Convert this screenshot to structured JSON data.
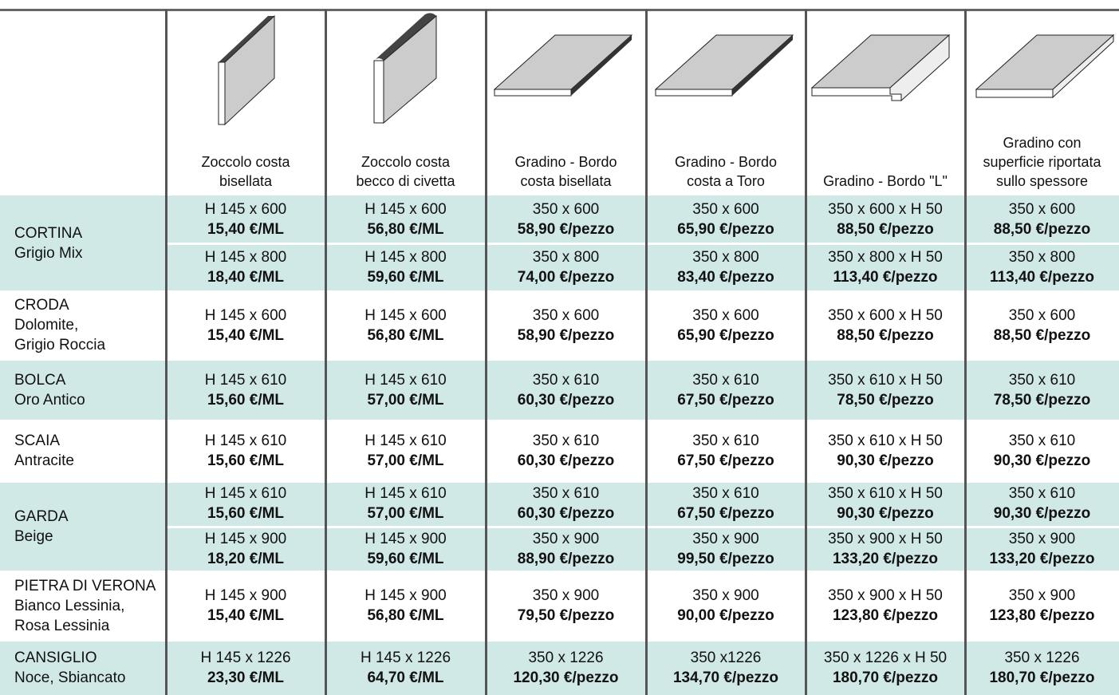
{
  "header": {
    "columns": [
      [
        "Zoccolo costa",
        "bisellata"
      ],
      [
        "Zoccolo  costa",
        "becco di civetta"
      ],
      [
        "Gradino - Bordo",
        "costa bisellata"
      ],
      [
        "Gradino - Bordo",
        "costa a Toro"
      ],
      [
        "Gradino - Bordo \"L\""
      ],
      [
        "Gradino con",
        "superficie riportata",
        "sullo spessore"
      ]
    ]
  },
  "table": {
    "groups": [
      {
        "name": [
          "CORTINA",
          "Grigio Mix"
        ],
        "rows": [
          [
            [
              "H 145 x 600",
              "15,40 €/ML"
            ],
            [
              "H 145 x 600",
              "56,80 €/ML"
            ],
            [
              "350 x 600",
              "58,90 €/pezzo"
            ],
            [
              "350 x 600",
              "65,90 €/pezzo"
            ],
            [
              "350 x 600 x H 50",
              "88,50 €/pezzo"
            ],
            [
              "350 x 600",
              "88,50 €/pezzo"
            ]
          ],
          [
            [
              "H 145 x 800",
              "18,40 €/ML"
            ],
            [
              "H 145 x 800",
              "59,60 €/ML"
            ],
            [
              "350 x 800",
              "74,00 €/pezzo"
            ],
            [
              "350 x 800",
              "83,40 €/pezzo"
            ],
            [
              "350 x 800 x H 50",
              "113,40 €/pezzo"
            ],
            [
              "350 x 800",
              "113,40 €/pezzo"
            ]
          ]
        ]
      },
      {
        "name": [
          "CRODA",
          "Dolomite,",
          "Grigio Roccia"
        ],
        "rows": [
          [
            [
              "H 145 x 600",
              "15,40 €/ML"
            ],
            [
              "H 145 x 600",
              "56,80 €/ML"
            ],
            [
              "350 x 600",
              "58,90 €/pezzo"
            ],
            [
              "350 x 600",
              "65,90 €/pezzo"
            ],
            [
              "350 x 600 x H 50",
              "88,50 €/pezzo"
            ],
            [
              "350 x 600",
              "88,50 €/pezzo"
            ]
          ]
        ]
      },
      {
        "name": [
          "BOLCA",
          "Oro Antico"
        ],
        "rows": [
          [
            [
              "H 145 x 610",
              "15,60 €/ML"
            ],
            [
              "H 145 x 610",
              "57,00 €/ML"
            ],
            [
              "350 x 610",
              "60,30 €/pezzo"
            ],
            [
              "350 x 610",
              "67,50 €/pezzo"
            ],
            [
              "350 x 610 x H 50",
              "78,50 €/pezzo"
            ],
            [
              "350 x 610",
              "78,50 €/pezzo"
            ]
          ]
        ]
      },
      {
        "name": [
          "SCAIA",
          "Antracite"
        ],
        "rows": [
          [
            [
              "H 145 x 610",
              "15,60 €/ML"
            ],
            [
              "H 145 x 610",
              "57,00 €/ML"
            ],
            [
              "350 x 610",
              "60,30 €/pezzo"
            ],
            [
              "350 x 610",
              "67,50 €/pezzo"
            ],
            [
              "350 x 610 x H 50",
              "90,30 €/pezzo"
            ],
            [
              "350 x 610",
              "90,30 €/pezzo"
            ]
          ]
        ]
      },
      {
        "name": [
          "GARDA",
          "Beige"
        ],
        "rows": [
          [
            [
              "H 145 x 610",
              "15,60 €/ML"
            ],
            [
              "H 145 x 610",
              "57,00 €/ML"
            ],
            [
              "350 x 610",
              "60,30 €/pezzo"
            ],
            [
              "350 x 610",
              "67,50 €/pezzo"
            ],
            [
              "350 x 610 x H 50",
              "90,30 €/pezzo"
            ],
            [
              "350 x 610",
              "90,30 €/pezzo"
            ]
          ],
          [
            [
              "H 145 x 900",
              "18,20 €/ML"
            ],
            [
              "H 145 x 900",
              "59,60 €/ML"
            ],
            [
              "350 x 900",
              "88,90 €/pezzo"
            ],
            [
              "350 x 900",
              "99,50 €/pezzo"
            ],
            [
              "350 x 900 x H 50",
              "133,20 €/pezzo"
            ],
            [
              "350 x 900",
              "133,20 €/pezzo"
            ]
          ]
        ]
      },
      {
        "name": [
          "PIETRA DI VERONA",
          "Bianco Lessinia,",
          "Rosa Lessinia"
        ],
        "rows": [
          [
            [
              "H 145 x 900",
              "15,40 €/ML"
            ],
            [
              "H 145 x 900",
              "56,80 €/ML"
            ],
            [
              "350 x 900",
              "79,50 €/pezzo"
            ],
            [
              "350 x 900",
              "90,00 €/pezzo"
            ],
            [
              "350 x 900 x H 50",
              "123,80 €/pezzo"
            ],
            [
              "350 x 900",
              "123,80 €/pezzo"
            ]
          ]
        ]
      },
      {
        "name": [
          "CANSIGLIO",
          "Noce, Sbiancato"
        ],
        "rows": [
          [
            [
              "H 145 x 1226",
              "23,30 €/ML"
            ],
            [
              "H 145 x 1226",
              "64,70 €/ML"
            ],
            [
              "350 x 1226",
              "120,30 €/pezzo"
            ],
            [
              "350 x1226",
              "134,70 €/pezzo"
            ],
            [
              "350 x 1226 x H 50",
              "180,70 €/pezzo"
            ],
            [
              "350 x 1226",
              "180,70 €/pezzo"
            ]
          ]
        ]
      }
    ]
  }
}
